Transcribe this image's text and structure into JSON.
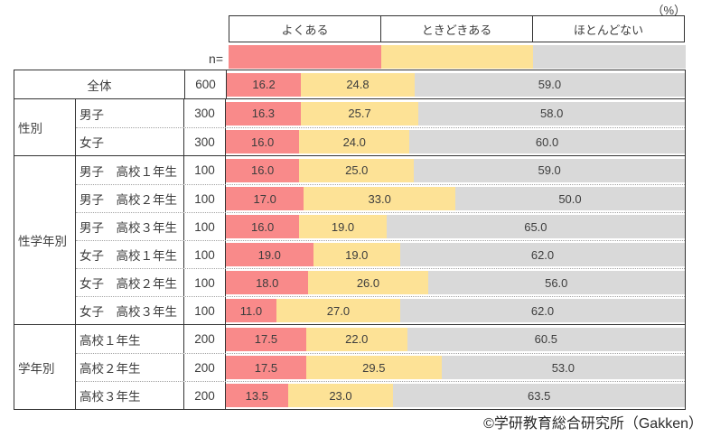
{
  "unit_label": "（%）",
  "n_label": "n=",
  "legend": [
    {
      "label": "よくある",
      "color": "#f98a8a"
    },
    {
      "label": "ときどきある",
      "color": "#fde296"
    },
    {
      "label": "ほとんどない",
      "color": "#d9d9d9"
    }
  ],
  "footer": "©学研教育総合研究所（Gakken）",
  "colors": {
    "border": "#333333",
    "dotted_separator": "#a3a3a3",
    "text": "#3d3d3d"
  },
  "chart_data": {
    "type": "bar",
    "stacked": true,
    "orientation": "horizontal",
    "value_unit": "%",
    "xlim": [
      0,
      100
    ],
    "series_names": [
      "よくある",
      "ときどきある",
      "ほとんどない"
    ],
    "groups": [
      {
        "group": "",
        "rows": [
          {
            "label": "全体",
            "n": "600",
            "values": [
              16.2,
              24.8,
              59.0
            ]
          }
        ]
      },
      {
        "group": "性別",
        "rows": [
          {
            "label": "男子",
            "n": "300",
            "values": [
              16.3,
              25.7,
              58.0
            ]
          },
          {
            "label": "女子",
            "n": "300",
            "values": [
              16.0,
              24.0,
              60.0
            ]
          }
        ]
      },
      {
        "group": "性学年別",
        "rows": [
          {
            "label": "男子　高校１年生",
            "n": "100",
            "values": [
              16.0,
              25.0,
              59.0
            ]
          },
          {
            "label": "男子　高校２年生",
            "n": "100",
            "values": [
              17.0,
              33.0,
              50.0
            ]
          },
          {
            "label": "男子　高校３年生",
            "n": "100",
            "values": [
              16.0,
              19.0,
              65.0
            ]
          },
          {
            "label": "女子　高校１年生",
            "n": "100",
            "values": [
              19.0,
              19.0,
              62.0
            ]
          },
          {
            "label": "女子　高校２年生",
            "n": "100",
            "values": [
              18.0,
              26.0,
              56.0
            ]
          },
          {
            "label": "女子　高校３年生",
            "n": "100",
            "values": [
              11.0,
              27.0,
              62.0
            ]
          }
        ]
      },
      {
        "group": "学年別",
        "rows": [
          {
            "label": "高校１年生",
            "n": "200",
            "values": [
              17.5,
              22.0,
              60.5
            ]
          },
          {
            "label": "高校２年生",
            "n": "200",
            "values": [
              17.5,
              29.5,
              53.0
            ]
          },
          {
            "label": "高校３年生",
            "n": "200",
            "values": [
              13.5,
              23.0,
              63.5
            ]
          }
        ]
      }
    ]
  }
}
